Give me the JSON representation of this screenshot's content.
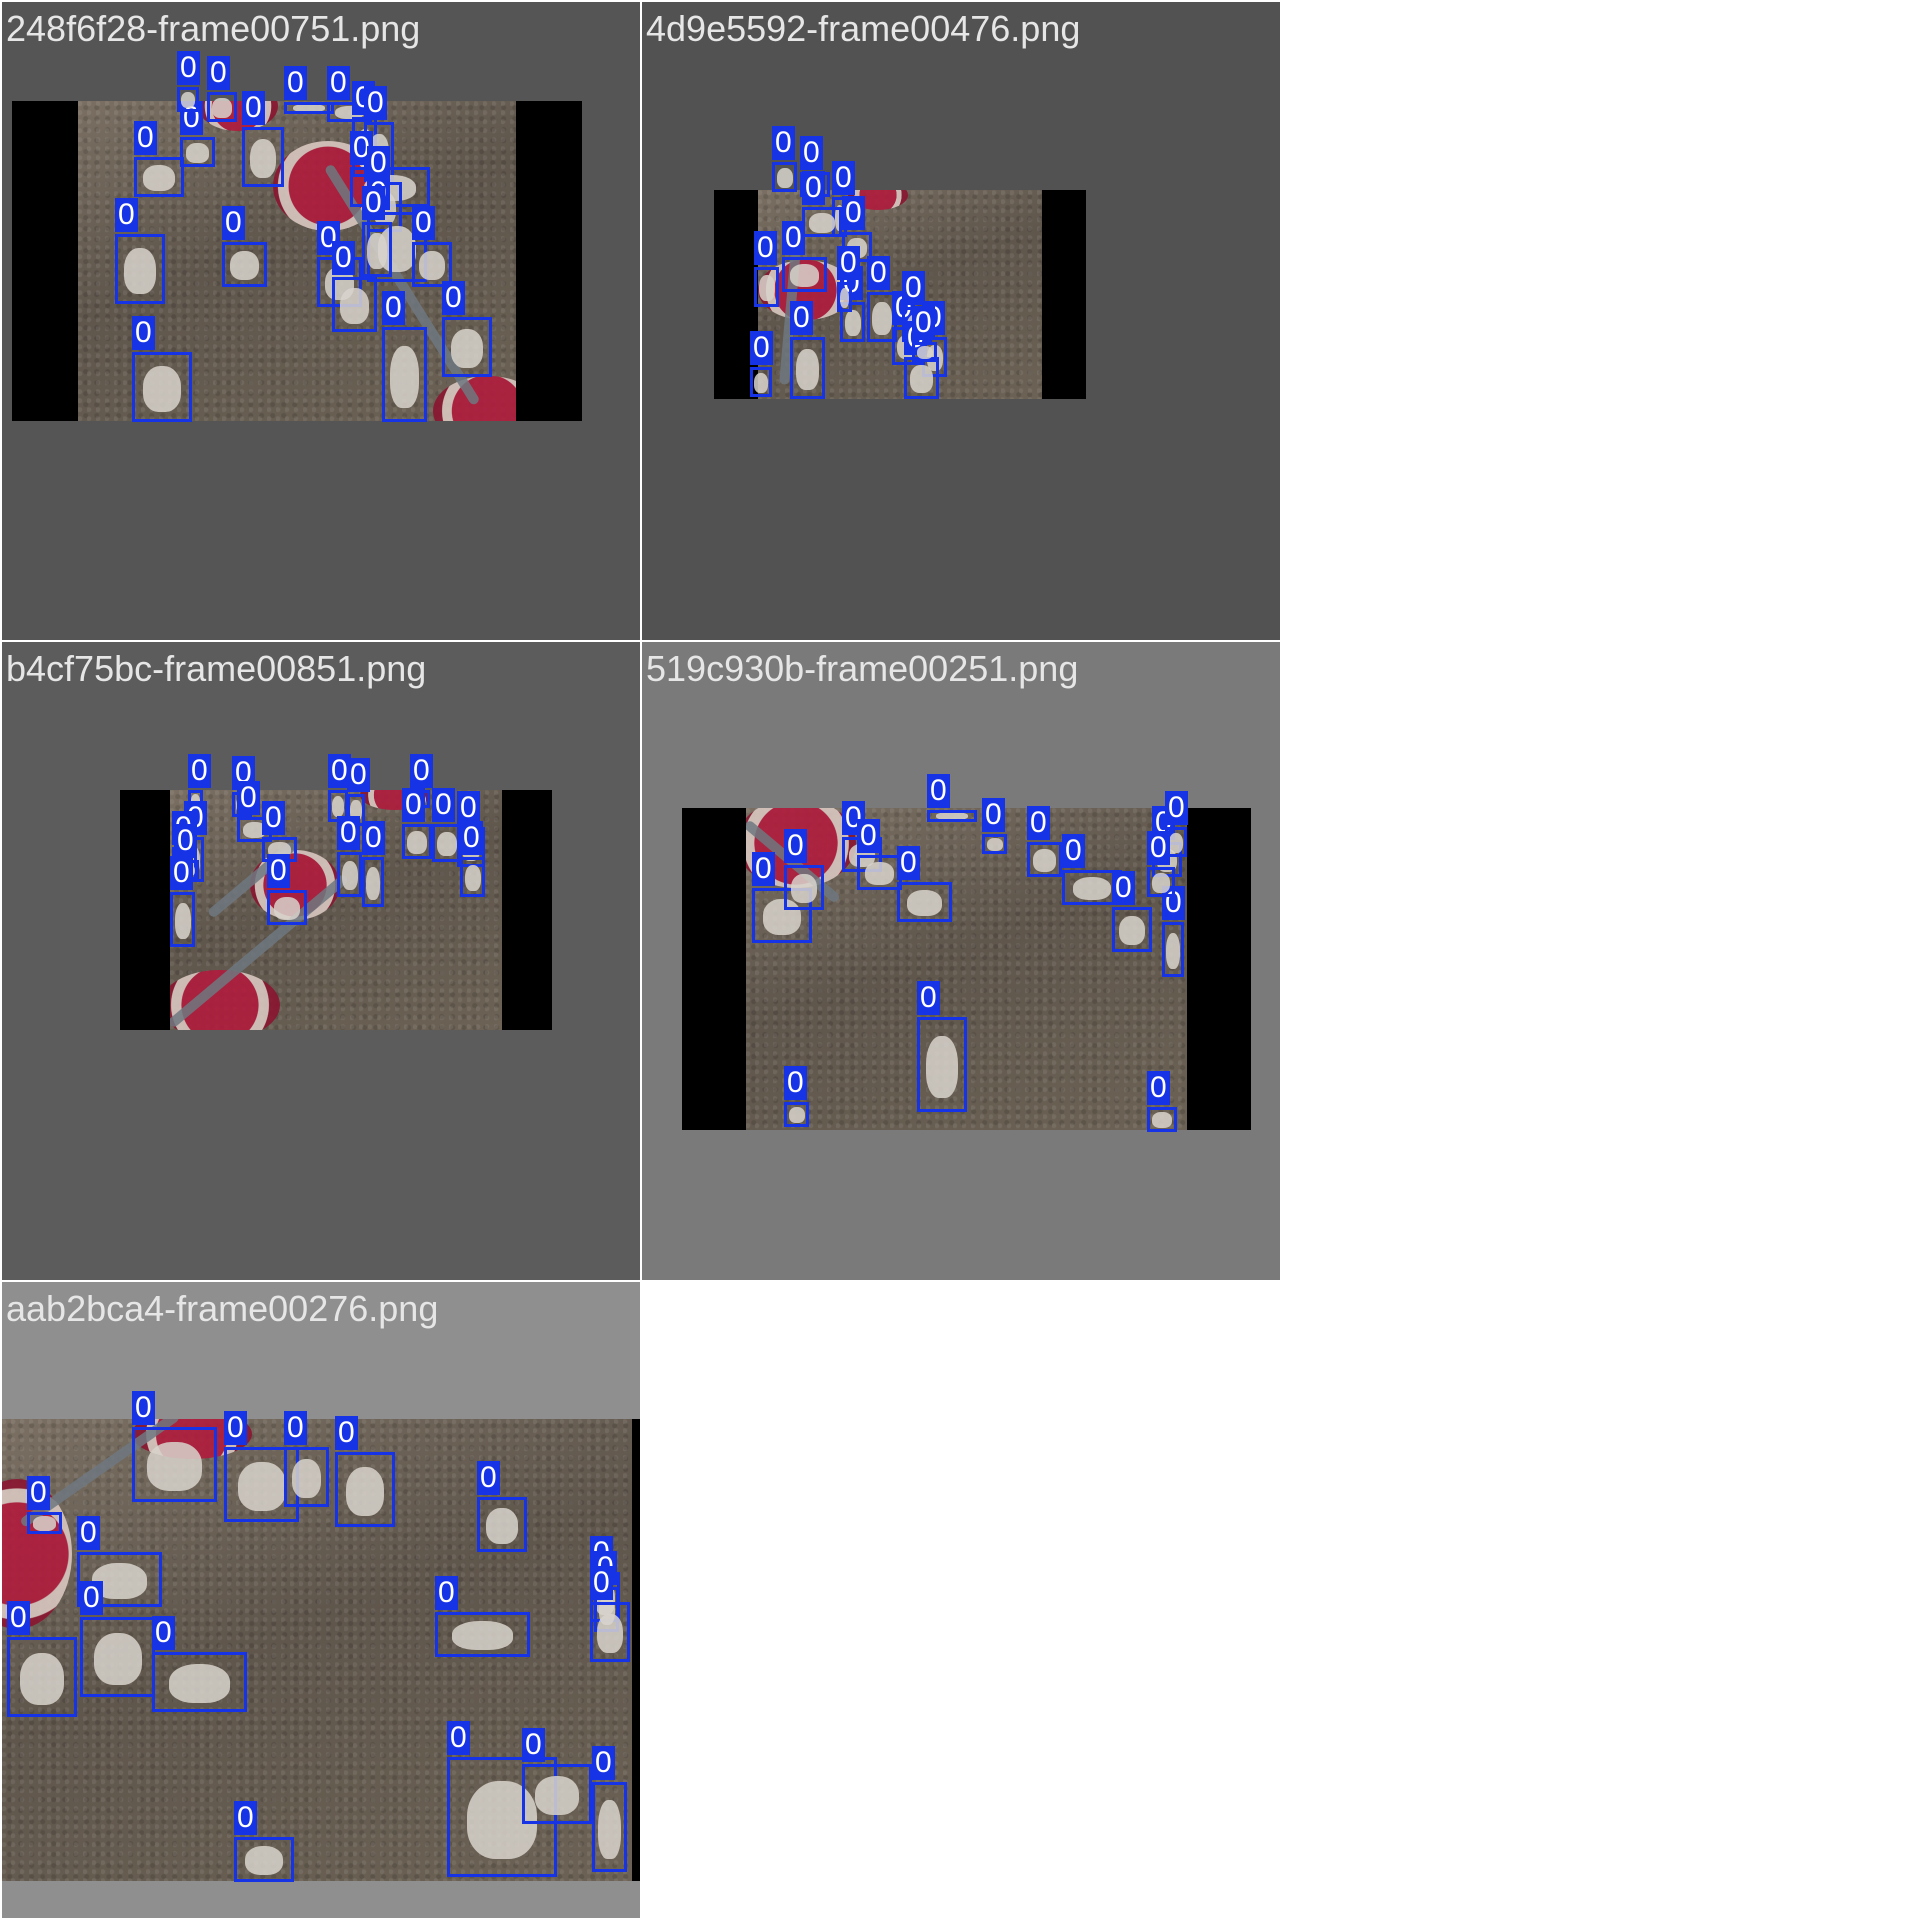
{
  "grid": {
    "tiles": [
      {
        "filename": "248f6f28-frame00751.png",
        "background": "#555555",
        "detections": 21
      },
      {
        "filename": "4d9e5592-frame00476.png",
        "background": "#525252",
        "detections": 17
      },
      {
        "filename": "b4cf75bc-frame00851.png",
        "background": "#5c5c5c",
        "detections": 18
      },
      {
        "filename": "519c930b-frame00251.png",
        "background": "#7a7a7a",
        "detections": 17
      },
      {
        "filename": "aab2bca4-frame00276.png",
        "background": "#8f8f8f",
        "detections": 17
      }
    ]
  },
  "detection": {
    "class_label": "0",
    "box_color": "#1733e6",
    "label_text_color": "#ffffff"
  },
  "scene": {
    "floor_color": "#6a6055",
    "feeder_color": "#b01b3c",
    "chick_color": "#d8d4cc",
    "letterbox_color": "#000000"
  }
}
